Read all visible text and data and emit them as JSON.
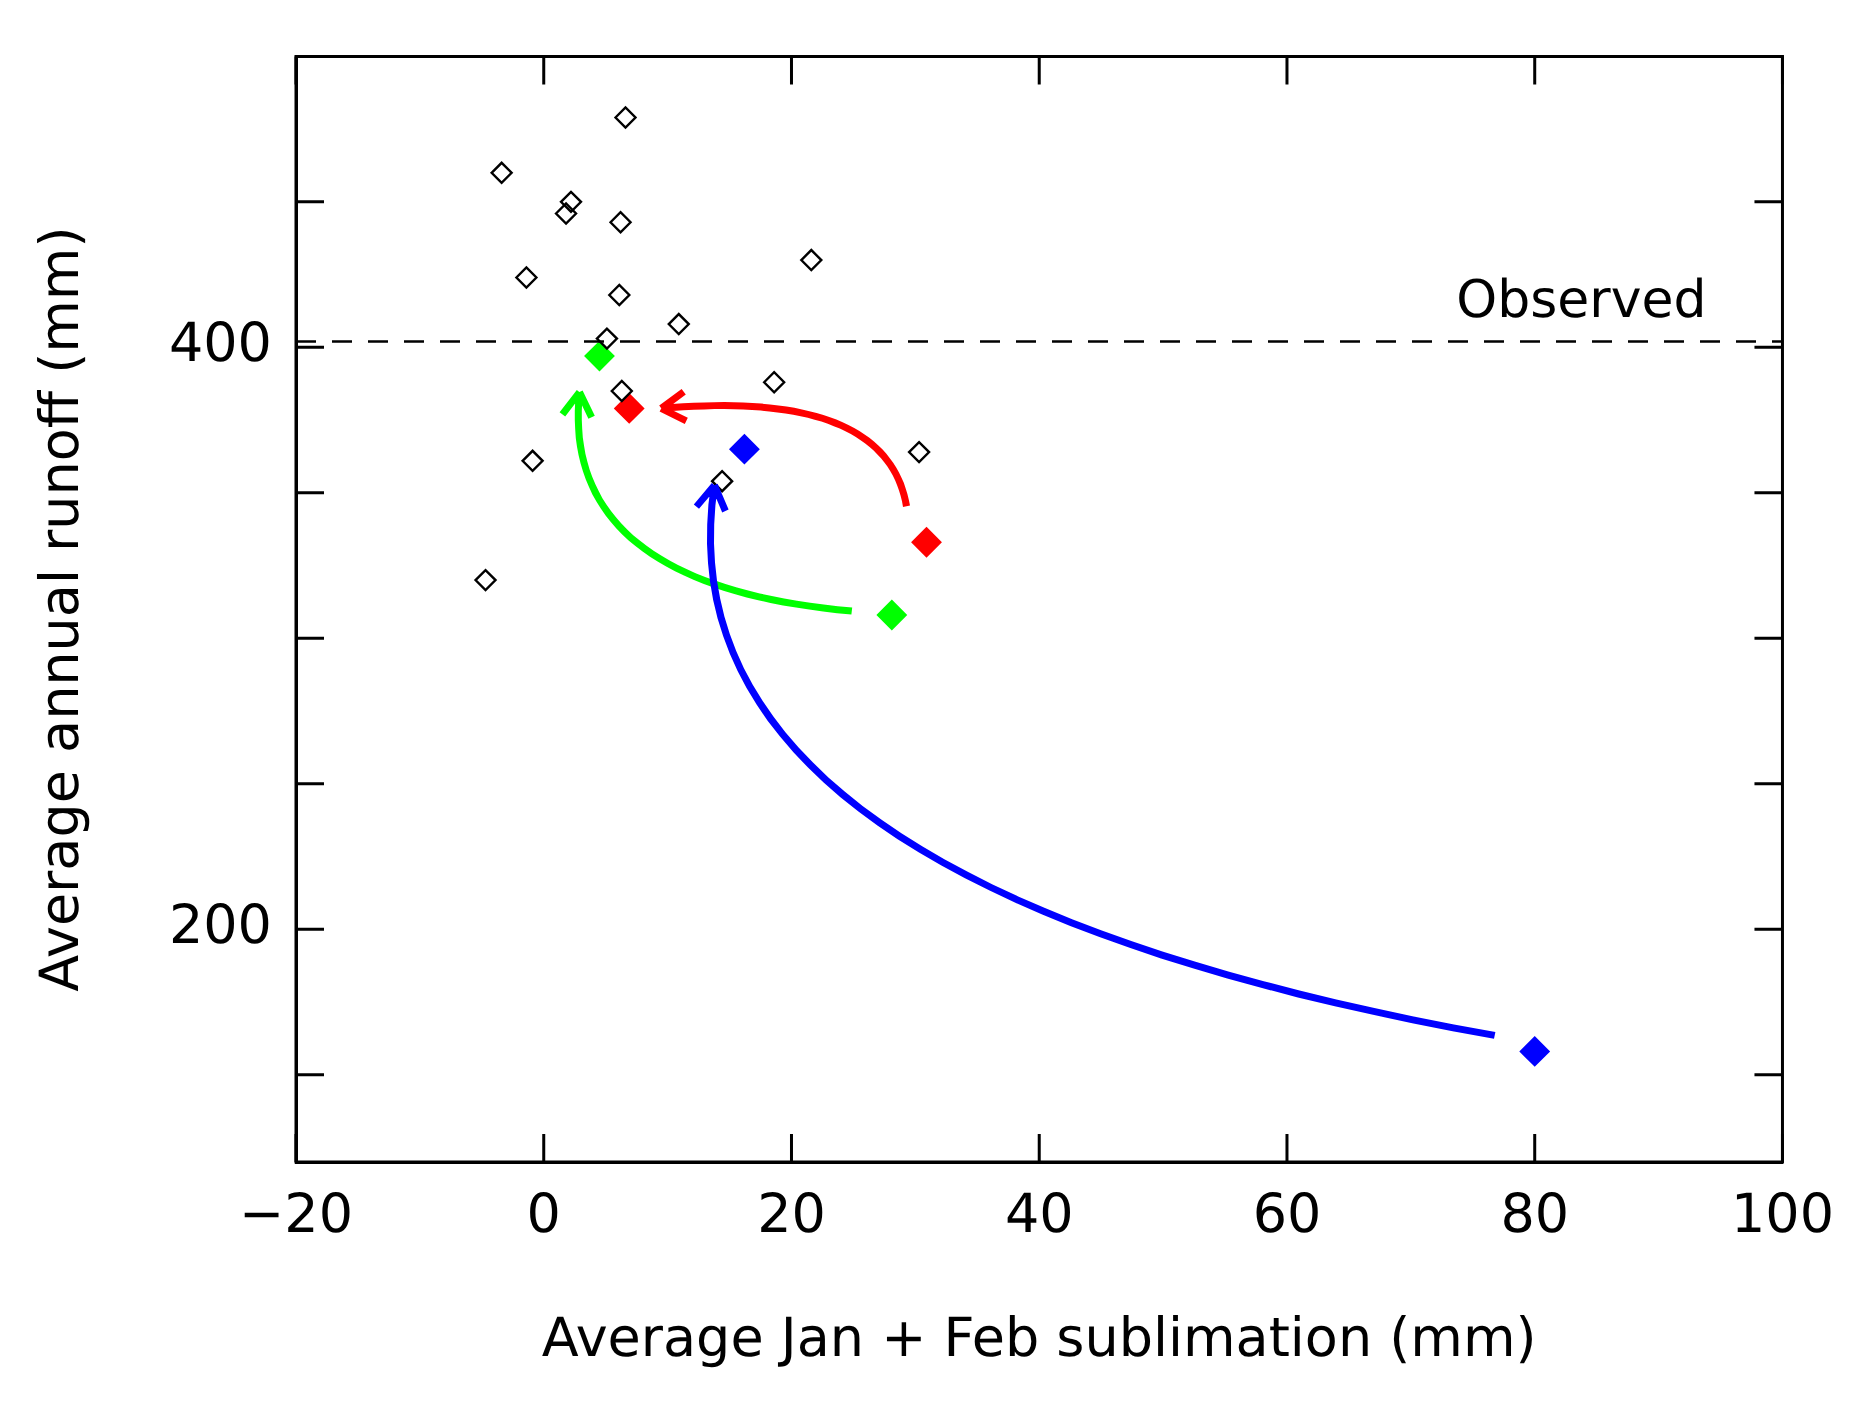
{
  "chart_data": {
    "type": "scatter",
    "xlabel": "Average Jan + Feb sublimation (mm)",
    "ylabel": "Average annual runoff (mm)",
    "xlim": [
      -20,
      100
    ],
    "xticks": [
      -20,
      0,
      20,
      40,
      60,
      80,
      100
    ],
    "ylim": [
      120,
      500
    ],
    "yticks": [
      {
        "value": 150,
        "label": null
      },
      200,
      {
        "value": 250,
        "label": null
      },
      {
        "value": 300,
        "label": null
      },
      {
        "value": 350,
        "label": null
      },
      400,
      {
        "value": 450,
        "label": null
      }
    ],
    "marker": "diamond",
    "grid": false,
    "legend": false,
    "series": [
      {
        "color": "#000000",
        "x": [
          6.6,
          -3.4,
          2.2,
          1.8,
          6.2,
          21.6,
          -1.4,
          6.1,
          10.9,
          5.1,
          18.6,
          6.3,
          30.3,
          -0.9,
          14.4,
          -4.7
        ],
        "values": [
          479,
          460,
          450,
          446,
          443,
          430,
          424,
          418,
          408,
          403,
          388,
          385,
          364,
          361,
          354,
          320
        ]
      },
      {
        "color": "#ff0000",
        "x": [
          30.9,
          6.9
        ],
        "values": [
          333,
          379
        ]
      },
      {
        "color": "#00ff00",
        "x": [
          28.1,
          4.5
        ],
        "values": [
          308,
          397
        ]
      },
      {
        "color": "#0000ff",
        "x": [
          80,
          16.2
        ],
        "values": [
          158,
          365
        ]
      }
    ],
    "ref_lines": [
      {
        "axis": "y",
        "value": 402,
        "label": "Observed",
        "color": "#000000",
        "line_style": "dashed"
      }
    ]
  }
}
